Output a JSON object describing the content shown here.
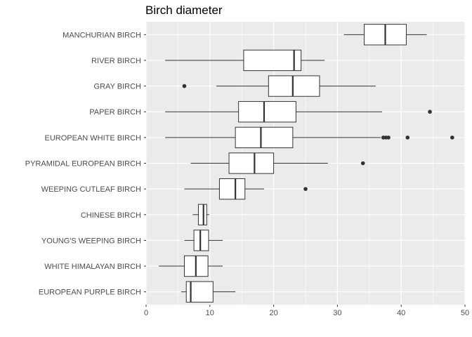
{
  "chart_data": {
    "type": "boxplot",
    "orientation": "horizontal",
    "title": "Birch diameter",
    "xlabel": "",
    "ylabel": "",
    "xlim": [
      0,
      50
    ],
    "x_ticks": [
      0,
      10,
      20,
      30,
      40,
      50
    ],
    "grid": true,
    "legend": "none",
    "colors": {
      "panel_bg": "#ebebeb",
      "grid_major": "#ffffff",
      "box_fill": "#ffffff",
      "box_stroke": "#333333",
      "outlier": "#333333"
    },
    "categories": [
      "MANCHURIAN BIRCH",
      "RIVER BIRCH",
      "GRAY BIRCH",
      "PAPER BIRCH",
      "EUROPEAN WHITE BIRCH",
      "PYRAMIDAL EUROPEAN BIRCH",
      "WEEPING CUTLEAF BIRCH",
      "CHINESE BIRCH",
      "YOUNG'S WEEPING BIRCH",
      "WHITE HIMALAYAN BIRCH",
      "EUROPEAN PURPLE BIRCH"
    ],
    "boxes": [
      {
        "min": 31,
        "q1": 34.2,
        "median": 37.5,
        "q3": 40.8,
        "max": 44,
        "outliers": []
      },
      {
        "min": 3,
        "q1": 15.3,
        "median": 23.2,
        "q3": 24.3,
        "max": 28,
        "outliers": []
      },
      {
        "min": 11,
        "q1": 19.2,
        "median": 23,
        "q3": 27.2,
        "max": 36,
        "outliers": [
          6
        ]
      },
      {
        "min": 3,
        "q1": 14.5,
        "median": 18.5,
        "q3": 23.5,
        "max": 37,
        "outliers": [
          44.5
        ]
      },
      {
        "min": 3,
        "q1": 14,
        "median": 18,
        "q3": 23,
        "max": 36.8,
        "outliers": [
          37.2,
          37.6,
          38,
          41,
          48
        ]
      },
      {
        "min": 7,
        "q1": 13,
        "median": 17,
        "q3": 20,
        "max": 28.5,
        "outliers": [
          34
        ]
      },
      {
        "min": 6,
        "q1": 11.5,
        "median": 14,
        "q3": 15.5,
        "max": 18.5,
        "outliers": [
          25
        ]
      },
      {
        "min": 7.3,
        "q1": 8.2,
        "median": 9,
        "q3": 9.5,
        "max": 9.9,
        "outliers": []
      },
      {
        "min": 6,
        "q1": 7.5,
        "median": 8.5,
        "q3": 9.8,
        "max": 12,
        "outliers": []
      },
      {
        "min": 2,
        "q1": 6,
        "median": 7.8,
        "q3": 9.7,
        "max": 12,
        "outliers": []
      },
      {
        "min": 5.5,
        "q1": 6.3,
        "median": 7,
        "q3": 10.5,
        "max": 14,
        "outliers": []
      }
    ]
  }
}
